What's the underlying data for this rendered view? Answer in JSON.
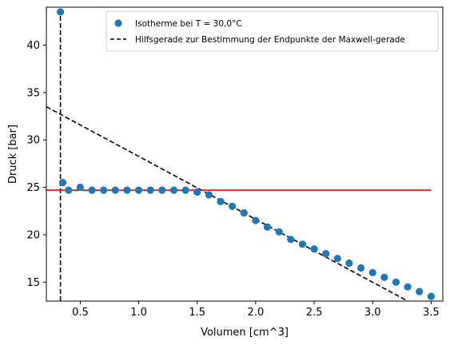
{
  "chart_data": {
    "type": "scatter",
    "xlabel": "Volumen [cm^3]",
    "ylabel": "Druck [bar]",
    "xlim": [
      0.21,
      3.6
    ],
    "ylim": [
      13,
      44
    ],
    "xticks": [
      0.5,
      1.0,
      1.5,
      2.0,
      2.5,
      3.0,
      3.5
    ],
    "xtick_labels": [
      "0.5",
      "1.0",
      "1.5",
      "2.0",
      "2.5",
      "3.0",
      "3.5"
    ],
    "yticks": [
      15,
      20,
      25,
      30,
      35,
      40
    ],
    "ytick_labels": [
      "15",
      "20",
      "25",
      "30",
      "35",
      "40"
    ],
    "grid": false,
    "legend_position": "top-right",
    "series": [
      {
        "name": "Isotherme bei T = 30,0°C",
        "kind": "scatter",
        "color": "#1f77b4",
        "x": [
          0.33,
          0.35,
          0.4,
          0.5,
          0.6,
          0.7,
          0.8,
          0.9,
          1.0,
          1.1,
          1.2,
          1.3,
          1.4,
          1.5,
          1.6,
          1.7,
          1.8,
          1.9,
          2.0,
          2.1,
          2.2,
          2.3,
          2.4,
          2.5,
          2.6,
          2.7,
          2.8,
          2.9,
          3.0,
          3.1,
          3.2,
          3.3,
          3.4,
          3.5
        ],
        "y": [
          43.5,
          25.5,
          24.7,
          25.0,
          24.7,
          24.7,
          24.7,
          24.7,
          24.7,
          24.7,
          24.7,
          24.7,
          24.7,
          24.5,
          24.2,
          23.5,
          23.0,
          22.3,
          21.5,
          20.8,
          20.3,
          19.5,
          19.0,
          18.5,
          18.0,
          17.5,
          17.0,
          16.5,
          16.0,
          15.5,
          15.0,
          14.5,
          14.0,
          13.5
        ]
      },
      {
        "name": "Hilfsgerade zur Bestimmung der Endpunkte der Maxwell-gerade",
        "kind": "line",
        "style": "dashed",
        "color": "#000000",
        "x": [
          0.21,
          3.3
        ],
        "y": [
          33.5,
          13.0
        ]
      },
      {
        "kind": "line",
        "style": "dashed",
        "color": "#000000",
        "x": [
          0.33,
          0.33
        ],
        "y": [
          13,
          44
        ]
      },
      {
        "kind": "line",
        "style": "solid",
        "color": "#ff0000",
        "x": [
          0.21,
          3.5
        ],
        "y": [
          24.7,
          24.7
        ]
      }
    ]
  }
}
